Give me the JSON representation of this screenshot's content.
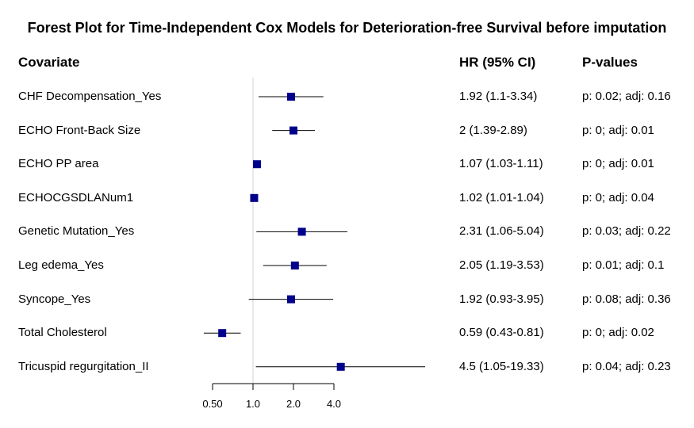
{
  "chart_data": {
    "type": "forest",
    "title": "Forest Plot for Time-Independent Cox Models for Deterioration-free Survival before imputation",
    "columns": {
      "covariate": "Covariate",
      "hr": "HR (95% CI)",
      "p": "P-values"
    },
    "x_scale": "log2",
    "xlim": [
      0.35,
      8
    ],
    "reference_line": 1.0,
    "ticks": [
      {
        "value": 0.5,
        "label": "0.50"
      },
      {
        "value": 1.0,
        "label": "1.0"
      },
      {
        "value": 2.0,
        "label": "2.0"
      },
      {
        "value": 4.0,
        "label": "4.0"
      }
    ],
    "marker_color": "#00008b",
    "rows": [
      {
        "covariate": "CHF Decompensation_Yes",
        "hr": 1.92,
        "lower": 1.1,
        "upper": 3.34,
        "hr_text": "1.92 (1.1-3.34)",
        "p_text": "p: 0.02; adj: 0.16"
      },
      {
        "covariate": "ECHO Front-Back Size",
        "hr": 2,
        "lower": 1.39,
        "upper": 2.89,
        "hr_text": "2 (1.39-2.89)",
        "p_text": "p: 0; adj: 0.01"
      },
      {
        "covariate": "ECHO PP area",
        "hr": 1.07,
        "lower": 1.03,
        "upper": 1.11,
        "hr_text": "1.07 (1.03-1.11)",
        "p_text": "p: 0; adj: 0.01"
      },
      {
        "covariate": "ECHOCGSDLANum1",
        "hr": 1.02,
        "lower": 1.01,
        "upper": 1.04,
        "hr_text": "1.02 (1.01-1.04)",
        "p_text": "p: 0; adj: 0.04"
      },
      {
        "covariate": "Genetic Mutation_Yes",
        "hr": 2.31,
        "lower": 1.06,
        "upper": 5.04,
        "hr_text": "2.31 (1.06-5.04)",
        "p_text": "p: 0.03; adj: 0.22"
      },
      {
        "covariate": "Leg edema_Yes",
        "hr": 2.05,
        "lower": 1.19,
        "upper": 3.53,
        "hr_text": "2.05 (1.19-3.53)",
        "p_text": "p: 0.01; adj: 0.1"
      },
      {
        "covariate": "Syncope_Yes",
        "hr": 1.92,
        "lower": 0.93,
        "upper": 3.95,
        "hr_text": "1.92 (0.93-3.95)",
        "p_text": "p: 0.08; adj: 0.36"
      },
      {
        "covariate": "Total Cholesterol",
        "hr": 0.59,
        "lower": 0.43,
        "upper": 0.81,
        "hr_text": "0.59 (0.43-0.81)",
        "p_text": "p: 0; adj: 0.02"
      },
      {
        "covariate": "Tricuspid regurgitation_II",
        "hr": 4.5,
        "lower": 1.05,
        "upper": 19.33,
        "hr_text": "4.5 (1.05-19.33)",
        "p_text": "p: 0.04; adj: 0.23"
      }
    ]
  }
}
